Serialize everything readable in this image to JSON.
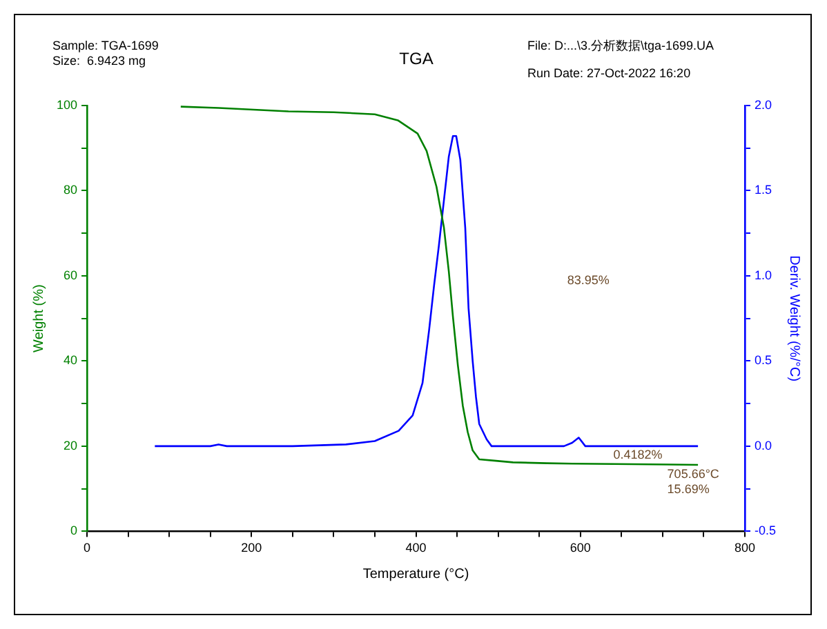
{
  "chart_data": {
    "type": "line",
    "title": "TGA",
    "xlabel": "Temperature (°C)",
    "ylabel": "Weight (%)",
    "y2label": "Deriv. Weight (%/°C)",
    "annotations": [
      "Sample: TGA-1699",
      "Size:  6.9423 mg",
      "File: D:...\\3.分析数据\\tga-1699.UA",
      "Run Date: 27-Oct-2022 16:20",
      "83.95%",
      "0.4182%",
      {
        "text": "705.66°C",
        "x": 705.66,
        "y": 15.69
      },
      {
        "text": "15.69%",
        "x": 705.66,
        "y": 15.69
      }
    ],
    "series": [
      {
        "color": "#008000",
        "x": [
          114,
          160,
          245,
          300,
          350,
          378,
          402,
          413,
          425,
          434,
          440,
          445,
          451,
          457,
          463,
          469,
          477,
          495,
          518,
          559,
          590,
          640,
          706,
          743
        ],
        "values": [
          99.7,
          99.4,
          98.6,
          98.4,
          97.9,
          96.5,
          93.4,
          89.3,
          80.9,
          71.4,
          61,
          50.4,
          39,
          29.5,
          23.3,
          19,
          16.9,
          16.6,
          16.2,
          16,
          15.9,
          15.8,
          15.7,
          15.6
        ]
      },
      {
        "color": "#0000ff",
        "axis": "y2",
        "x": [
          82.5,
          150,
          160,
          170,
          250,
          315,
          350,
          379,
          396,
          408,
          416,
          422,
          428,
          434,
          440,
          445,
          449,
          454,
          460,
          464,
          469,
          473,
          477,
          486,
          492,
          580,
          590,
          598,
          606,
          743
        ],
        "values": [
          0,
          0,
          0.01,
          0,
          0,
          0.01,
          0.03,
          0.09,
          0.18,
          0.37,
          0.68,
          0.94,
          1.18,
          1.44,
          1.7,
          1.82,
          1.82,
          1.68,
          1.28,
          0.81,
          0.5,
          0.29,
          0.13,
          0.04,
          0,
          0,
          0.02,
          0.05,
          0,
          0
        ]
      }
    ],
    "xlim": [
      0,
      800
    ],
    "xticks": [
      0,
      {
        "value": 50,
        "label": null
      },
      {
        "value": 100,
        "label": null
      },
      {
        "value": 150,
        "label": null
      },
      200,
      {
        "value": 250,
        "label": null
      },
      {
        "value": 300,
        "label": null
      },
      {
        "value": 350,
        "label": null
      },
      400,
      {
        "value": 450,
        "label": null
      },
      {
        "value": 500,
        "label": null
      },
      {
        "value": 550,
        "label": null
      },
      600,
      {
        "value": 650,
        "label": null
      },
      {
        "value": 700,
        "label": null
      },
      {
        "value": 750,
        "label": null
      },
      800
    ],
    "ylim": [
      0,
      100
    ],
    "yticks": [
      0,
      {
        "value": 10,
        "label": null
      },
      20,
      {
        "value": 30,
        "label": null
      },
      40,
      {
        "value": 50,
        "label": null
      },
      60,
      {
        "value": 70,
        "label": null
      },
      80,
      {
        "value": 90,
        "label": null
      },
      100
    ],
    "y2lim": [
      -0.5,
      2
    ],
    "y2ticks": [
      {
        "value": -0.5,
        "label": "-0.5"
      },
      {
        "value": -0.25,
        "label": null
      },
      {
        "value": 0,
        "label": "0.0"
      },
      {
        "value": 0.25,
        "label": null
      },
      {
        "value": 0.5,
        "label": "0.5"
      },
      {
        "value": 0.75,
        "label": null
      },
      {
        "value": 1,
        "label": "1.0"
      },
      {
        "value": 1.25,
        "label": null
      },
      {
        "value": 1.5,
        "label": "1.5"
      },
      {
        "value": 1.75,
        "label": null
      },
      {
        "value": 2,
        "label": "2.0"
      }
    ],
    "grid": false,
    "legend": false,
    "marker": "none",
    "line_style": "solid"
  }
}
